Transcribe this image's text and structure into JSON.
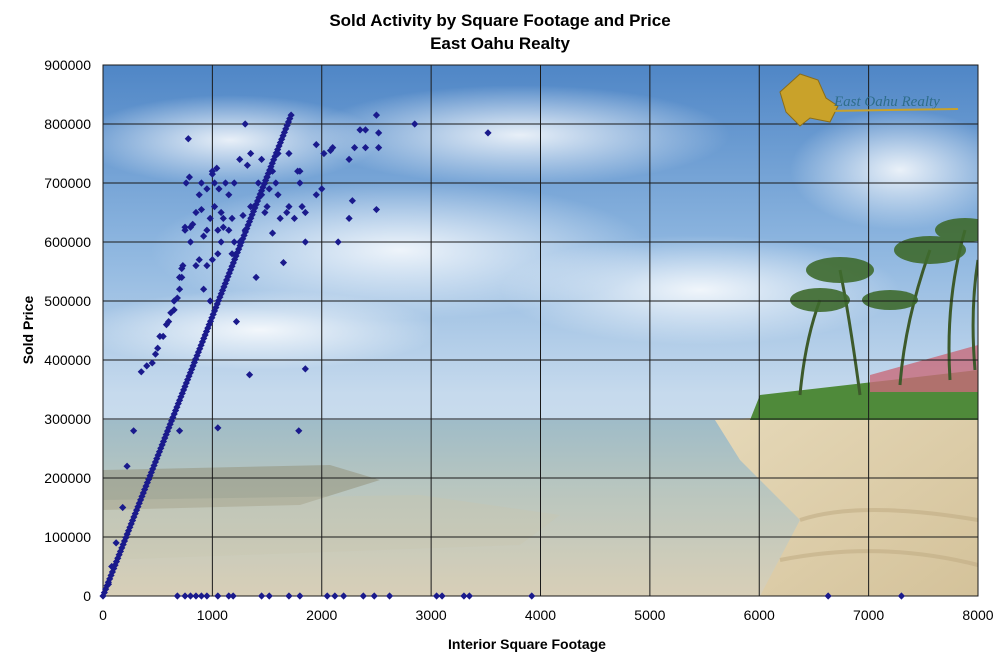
{
  "chart_data": {
    "type": "scatter",
    "title": "Sold Activity by Square Footage and Price",
    "subtitle": "East Oahu Realty",
    "xlabel": "Interior Square Footage",
    "ylabel": "Sold Price",
    "xlim": [
      0,
      8000
    ],
    "ylim": [
      0,
      900000
    ],
    "x_ticks": [
      "0",
      "1000",
      "2000",
      "3000",
      "4000",
      "5000",
      "6000",
      "7000",
      "8000"
    ],
    "y_ticks": [
      "0",
      "100000",
      "200000",
      "300000",
      "400000",
      "500000",
      "600000",
      "700000",
      "800000",
      "900000"
    ],
    "grid": true,
    "background": "beach photograph",
    "logo_text": "East Oahu Realty",
    "colors": {
      "marker": "#1a1a8c",
      "grid": "#1a1a1a",
      "logo": "#2e6d8a",
      "logo_island": "#c9a22a"
    },
    "trend_segment": {
      "x": [
        0,
        1720
      ],
      "y": [
        0,
        815000
      ],
      "count": 140
    },
    "series": [
      {
        "x": [
          50,
          80,
          120,
          180,
          220,
          280,
          350,
          400,
          450,
          480,
          500,
          520,
          550,
          580,
          600,
          620,
          650,
          650,
          680,
          700,
          700,
          720,
          720,
          730,
          750,
          750,
          760,
          780,
          790,
          800,
          800,
          820,
          850,
          850,
          880,
          880,
          900,
          900,
          920,
          920,
          950,
          950,
          950,
          980,
          980,
          1000,
          1000,
          1000,
          1020,
          1020,
          1040,
          1050,
          1050,
          1060,
          1080,
          1080,
          1100,
          1100,
          1120,
          1150,
          1150,
          1180,
          1180,
          1200,
          1200,
          1220,
          1250,
          1250,
          1280,
          1300,
          1300,
          1320,
          1350,
          1350,
          1380,
          1400,
          1420,
          1450,
          1450,
          1480,
          1500,
          1500,
          1520,
          1550,
          1550,
          1580,
          1600,
          1600,
          1620,
          1650,
          1680,
          1700,
          1700,
          1750,
          1780,
          1800,
          1800,
          1820,
          1850,
          1850,
          1950,
          1950,
          2000,
          2020,
          2080,
          2100,
          2150,
          2250,
          2250,
          2280,
          2300,
          2350,
          2400,
          2400,
          2500,
          2500,
          2520,
          2520,
          2850,
          3520,
          700,
          1050,
          1340,
          1790,
          1850,
          680,
          750,
          800,
          850,
          900,
          950,
          1050,
          1150,
          1190,
          1450,
          1520,
          1700,
          1800,
          2050,
          2120,
          2200,
          2380,
          2480,
          2620,
          3050,
          3100,
          3300,
          3350,
          3920,
          6630,
          7300
        ],
        "y": [
          20000,
          50000,
          90000,
          150000,
          220000,
          280000,
          380000,
          390000,
          395000,
          410000,
          420000,
          440000,
          440000,
          460000,
          465000,
          480000,
          485000,
          500000,
          505000,
          520000,
          540000,
          540000,
          555000,
          560000,
          620000,
          625000,
          700000,
          775000,
          710000,
          600000,
          625000,
          630000,
          560000,
          650000,
          570000,
          680000,
          655000,
          700000,
          520000,
          610000,
          560000,
          620000,
          690000,
          500000,
          640000,
          715000,
          720000,
          570000,
          660000,
          700000,
          725000,
          580000,
          620000,
          690000,
          600000,
          650000,
          625000,
          640000,
          700000,
          680000,
          620000,
          580000,
          640000,
          600000,
          700000,
          465000,
          600000,
          740000,
          645000,
          800000,
          620000,
          730000,
          660000,
          750000,
          660000,
          540000,
          700000,
          740000,
          680000,
          650000,
          660000,
          710000,
          690000,
          720000,
          615000,
          700000,
          750000,
          680000,
          640000,
          565000,
          650000,
          750000,
          660000,
          640000,
          720000,
          720000,
          700000,
          660000,
          650000,
          600000,
          765000,
          680000,
          690000,
          750000,
          755000,
          760000,
          600000,
          740000,
          640000,
          670000,
          760000,
          790000,
          790000,
          760000,
          815000,
          655000,
          785000,
          760000,
          800000,
          785000,
          280000,
          285000,
          375000,
          280000,
          385000,
          0,
          0,
          0,
          0,
          0,
          0,
          0,
          0,
          0,
          0,
          0,
          0,
          0,
          0,
          0,
          0,
          0,
          0,
          0,
          0,
          0,
          0,
          0,
          0,
          0,
          0
        ]
      }
    ]
  }
}
